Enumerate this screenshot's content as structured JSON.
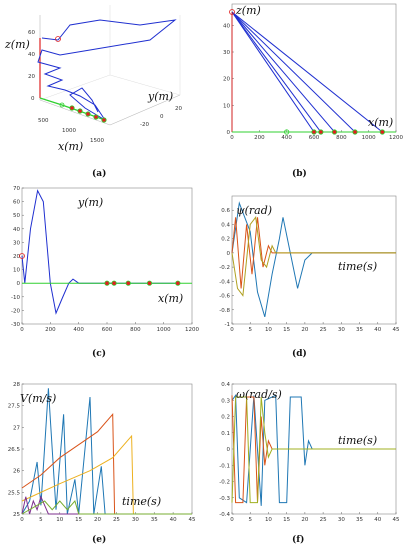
{
  "chart_data": [
    {
      "type": "line",
      "panel": "(a)",
      "projection": "3d",
      "labels": {
        "x": "x(m)",
        "y": "y(m)",
        "z": "z(m)"
      },
      "x_ticks": [
        "500",
        "1000",
        "1500"
      ],
      "y_ticks": [
        "20",
        "0",
        "-20"
      ],
      "z_ticks": [
        "0",
        "20",
        "40",
        "60"
      ],
      "series": [
        {
          "color": "#1f2fd0",
          "points": [
            [
              0,
              0,
              48
            ],
            [
              150,
              30,
              44
            ],
            [
              300,
              -10,
              35
            ],
            [
              180,
              10,
              28
            ],
            [
              250,
              20,
              22
            ],
            [
              400,
              0,
              15
            ],
            [
              600,
              5,
              8
            ],
            [
              800,
              0,
              4
            ],
            [
              1100,
              0,
              0
            ]
          ]
        },
        {
          "color": "#e02020",
          "points": [
            [
              0,
              0,
              0
            ],
            [
              0,
              0,
              50
            ]
          ]
        },
        {
          "color": "#30d030",
          "points": [
            [
              0,
              0,
              0
            ],
            [
              1100,
              0,
              0
            ]
          ]
        }
      ],
      "markers": {
        "start": [
          0,
          0,
          48
        ],
        "targets": [
          [
            600,
            0,
            0
          ],
          [
            650,
            0,
            0
          ],
          [
            750,
            0,
            0
          ],
          [
            900,
            0,
            0
          ],
          [
            1100,
            0,
            0
          ]
        ]
      }
    },
    {
      "type": "line",
      "panel": "(b)",
      "xlabel": "x(m)",
      "ylabel": "z(m)",
      "xlim": [
        0,
        1200
      ],
      "ylim": [
        0,
        48
      ],
      "x_ticks": [
        0,
        200,
        400,
        600,
        800,
        1000,
        1200
      ],
      "y_ticks": [
        0,
        10,
        20,
        30,
        40
      ],
      "series": [
        {
          "color": "#1f2fd0",
          "points": [
            [
              0,
              45
            ],
            [
              600,
              0
            ]
          ]
        },
        {
          "color": "#1f2fd0",
          "points": [
            [
              0,
              45
            ],
            [
              650,
              0
            ]
          ]
        },
        {
          "color": "#1f2fd0",
          "points": [
            [
              0,
              45
            ],
            [
              750,
              0
            ]
          ]
        },
        {
          "color": "#1f2fd0",
          "points": [
            [
              0,
              45
            ],
            [
              900,
              0
            ]
          ]
        },
        {
          "color": "#1f2fd0",
          "points": [
            [
              0,
              45
            ],
            [
              1100,
              0
            ]
          ]
        },
        {
          "color": "#d02020",
          "points": [
            [
              0,
              0
            ],
            [
              0,
              45
            ]
          ]
        },
        {
          "color": "#30d030",
          "points": [
            [
              0,
              0
            ],
            [
              1200,
              0
            ]
          ]
        }
      ],
      "start_marker": [
        0,
        45
      ],
      "open_marker": [
        400,
        0
      ],
      "targets": [
        600,
        650,
        750,
        900,
        1100
      ]
    },
    {
      "type": "line",
      "panel": "(c)",
      "xlabel": "x(m)",
      "ylabel": "y(m)",
      "xlim": [
        0,
        1200
      ],
      "ylim": [
        -30,
        70
      ],
      "x_ticks": [
        0,
        200,
        400,
        600,
        800,
        1000,
        1200
      ],
      "y_ticks": [
        -30,
        -20,
        -10,
        0,
        10,
        20,
        30,
        40,
        50,
        60,
        70
      ],
      "series": [
        {
          "color": "#1f2fd0",
          "points": [
            [
              0,
              20
            ],
            [
              20,
              0
            ],
            [
              60,
              40
            ],
            [
              110,
              68
            ],
            [
              150,
              60
            ],
            [
              200,
              0
            ],
            [
              240,
              -22
            ],
            [
              280,
              -12
            ],
            [
              330,
              0
            ],
            [
              360,
              3
            ],
            [
              400,
              0
            ],
            [
              1100,
              0
            ]
          ]
        },
        {
          "color": "#30d030",
          "points": [
            [
              0,
              0
            ],
            [
              1200,
              0
            ]
          ]
        }
      ],
      "start_marker": [
        0,
        20
      ],
      "targets": [
        600,
        650,
        750,
        900,
        1100
      ]
    },
    {
      "type": "line",
      "panel": "(d)",
      "xlabel": "time(s)",
      "ylabel": "ψ(rad)",
      "xlim": [
        0,
        45
      ],
      "ylim": [
        -1,
        0.8
      ],
      "x_ticks": [
        0,
        5,
        10,
        15,
        20,
        25,
        30,
        35,
        40,
        45
      ],
      "y_ticks": [
        -1,
        -0.8,
        -0.6,
        -0.4,
        -0.2,
        0,
        0.2,
        0.4,
        0.6
      ],
      "series": [
        {
          "color": "#1f77b4",
          "points": [
            [
              0,
              0
            ],
            [
              2,
              0.7
            ],
            [
              5,
              0.3
            ],
            [
              7,
              -0.55
            ],
            [
              9,
              -0.9
            ],
            [
              11,
              -0.3
            ],
            [
              13,
              0.2
            ],
            [
              14,
              0.5
            ],
            [
              16,
              0
            ],
            [
              18,
              -0.5
            ],
            [
              20,
              -0.1
            ],
            [
              22,
              0
            ],
            [
              45,
              0
            ]
          ]
        },
        {
          "color": "#d95319",
          "points": [
            [
              0,
              0
            ],
            [
              1,
              0.5
            ],
            [
              2.5,
              -0.5
            ],
            [
              4,
              0.4
            ],
            [
              5.5,
              -0.3
            ],
            [
              7,
              0.5
            ],
            [
              8.5,
              -0.2
            ],
            [
              10,
              0.1
            ],
            [
              11,
              0
            ],
            [
              45,
              0
            ]
          ]
        },
        {
          "color": "#b0a020",
          "points": [
            [
              0,
              0
            ],
            [
              1.5,
              -0.5
            ],
            [
              3,
              -0.6
            ],
            [
              5,
              0.4
            ],
            [
              6.5,
              0.5
            ],
            [
              8,
              -0.1
            ],
            [
              9.5,
              -0.2
            ],
            [
              11,
              0.1
            ],
            [
              12,
              0
            ],
            [
              45,
              0
            ]
          ]
        }
      ]
    },
    {
      "type": "line",
      "panel": "(e)",
      "xlabel": "time(s)",
      "ylabel": "V(m/s)",
      "xlim": [
        0,
        45
      ],
      "ylim": [
        25,
        28
      ],
      "x_ticks": [
        0,
        5,
        10,
        15,
        20,
        25,
        30,
        35,
        40,
        45
      ],
      "y_ticks": [
        25,
        25.5,
        26,
        26.5,
        27,
        27.5,
        28
      ],
      "series": [
        {
          "color": "#1f77b4",
          "points": [
            [
              0,
              25
            ],
            [
              2,
              25.3
            ],
            [
              4,
              26.2
            ],
            [
              5,
              25.2
            ],
            [
              7,
              27.9
            ],
            [
              9,
              25.1
            ],
            [
              11,
              27.3
            ],
            [
              12,
              25
            ],
            [
              14,
              25.8
            ],
            [
              15,
              25
            ],
            [
              18,
              27.7
            ],
            [
              19,
              25
            ],
            [
              21,
              26.1
            ],
            [
              22,
              25
            ],
            [
              45,
              25
            ]
          ]
        },
        {
          "color": "#d95319",
          "points": [
            [
              0,
              25.6
            ],
            [
              5,
              25.9
            ],
            [
              10,
              26.3
            ],
            [
              15,
              26.6
            ],
            [
              20,
              26.9
            ],
            [
              24,
              27.3
            ],
            [
              24.5,
              25
            ],
            [
              45,
              25
            ]
          ]
        },
        {
          "color": "#edb120",
          "points": [
            [
              0,
              25.3
            ],
            [
              10,
              25.7
            ],
            [
              18,
              26.0
            ],
            [
              24,
              26.3
            ],
            [
              29,
              26.8
            ],
            [
              29.5,
              25
            ],
            [
              45,
              25
            ]
          ]
        },
        {
          "color": "#7e2f8e",
          "points": [
            [
              0,
              25
            ],
            [
              1,
              25.4
            ],
            [
              2,
              25
            ],
            [
              3,
              25.3
            ],
            [
              4,
              25.1
            ],
            [
              5,
              25.4
            ],
            [
              7,
              25
            ],
            [
              45,
              25
            ]
          ]
        },
        {
          "color": "#77ac30",
          "points": [
            [
              0,
              25
            ],
            [
              6,
              25.3
            ],
            [
              8,
              25.1
            ],
            [
              10,
              25.3
            ],
            [
              12,
              25.1
            ],
            [
              14,
              25.3
            ],
            [
              15,
              25
            ],
            [
              45,
              25
            ]
          ]
        }
      ]
    },
    {
      "type": "line",
      "panel": "(f)",
      "xlabel": "time(s)",
      "ylabel": "ω(rad/s)",
      "xlim": [
        0,
        45
      ],
      "ylim": [
        -0.4,
        0.4
      ],
      "x_ticks": [
        0,
        5,
        10,
        15,
        20,
        25,
        30,
        35,
        40,
        45
      ],
      "y_ticks": [
        -0.4,
        -0.3,
        -0.2,
        -0.1,
        0,
        0.1,
        0.2,
        0.3,
        0.4
      ],
      "series": [
        {
          "color": "#1f77b4",
          "points": [
            [
              0,
              0.3
            ],
            [
              1,
              0.33
            ],
            [
              2,
              -0.3
            ],
            [
              4,
              -0.33
            ],
            [
              6,
              0.33
            ],
            [
              8,
              -0.35
            ],
            [
              9,
              0.3
            ],
            [
              12,
              0.33
            ],
            [
              13,
              -0.33
            ],
            [
              15,
              -0.33
            ],
            [
              16,
              0.32
            ],
            [
              19,
              0.32
            ],
            [
              20,
              -0.1
            ],
            [
              21,
              0.05
            ],
            [
              22,
              0
            ],
            [
              45,
              0
            ]
          ]
        },
        {
          "color": "#d95319",
          "points": [
            [
              0,
              0.33
            ],
            [
              1,
              -0.33
            ],
            [
              3,
              -0.33
            ],
            [
              4,
              0.32
            ],
            [
              6,
              0.32
            ],
            [
              7,
              -0.33
            ],
            [
              8,
              0.2
            ],
            [
              9,
              -0.1
            ],
            [
              10,
              0.05
            ],
            [
              11,
              0
            ],
            [
              45,
              0
            ]
          ]
        },
        {
          "color": "#a0b020",
          "points": [
            [
              0,
              -0.33
            ],
            [
              1,
              0.32
            ],
            [
              4,
              0.32
            ],
            [
              5,
              -0.33
            ],
            [
              7,
              -0.33
            ],
            [
              8,
              0.32
            ],
            [
              9,
              0.1
            ],
            [
              10,
              -0.05
            ],
            [
              11,
              0
            ],
            [
              45,
              0
            ]
          ]
        }
      ]
    }
  ],
  "captions": [
    "(a)",
    "(b)",
    "(c)",
    "(d)",
    "(e)",
    "(f)"
  ]
}
